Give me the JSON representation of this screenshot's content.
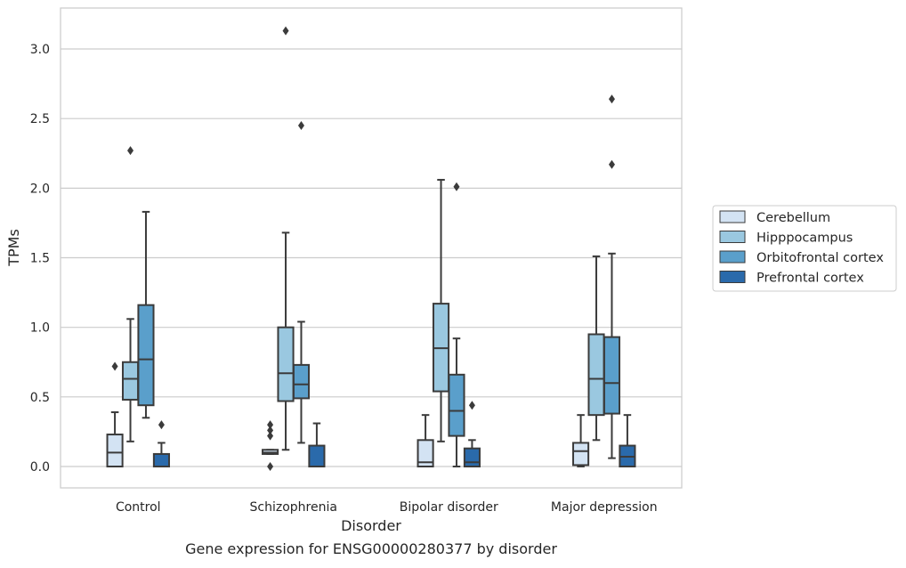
{
  "chart_data": {
    "type": "box",
    "title": "",
    "caption": "Gene expression for ENSG00000280377 by disorder",
    "xlabel": "Disorder",
    "ylabel": "TPMs",
    "ylim": [
      -0.15,
      3.3
    ],
    "yticks": [
      "0.0",
      "0.5",
      "1.0",
      "1.5",
      "2.0",
      "2.5",
      "3.0"
    ],
    "grid": "horizontal",
    "legend_placement": "right",
    "categories": [
      "Control",
      "Schizophrenia",
      "Bipolar disorder",
      "Major depression"
    ],
    "series": [
      {
        "name": "Cerebellum",
        "color": "#d3e3f3",
        "boxes": [
          {
            "whislo": 0.0,
            "q1": 0.0,
            "med": 0.1,
            "q3": 0.23,
            "whishi": 0.39,
            "fliers": [
              0.72
            ]
          },
          {
            "whislo": 0.09,
            "q1": 0.09,
            "med": 0.1,
            "q3": 0.12,
            "whishi": 0.12,
            "fliers": [
              0.3,
              0.26,
              0.22,
              0.0
            ]
          },
          {
            "whislo": 0.0,
            "q1": 0.0,
            "med": 0.03,
            "q3": 0.19,
            "whishi": 0.37,
            "fliers": []
          },
          {
            "whislo": 0.0,
            "q1": 0.01,
            "med": 0.11,
            "q3": 0.17,
            "whishi": 0.37,
            "fliers": []
          }
        ]
      },
      {
        "name": "Hipppocampus",
        "color": "#9ac8e0",
        "boxes": [
          {
            "whislo": 0.18,
            "q1": 0.48,
            "med": 0.63,
            "q3": 0.75,
            "whishi": 1.06,
            "fliers": [
              2.27
            ]
          },
          {
            "whislo": 0.12,
            "q1": 0.47,
            "med": 0.67,
            "q3": 1.0,
            "whishi": 1.68,
            "fliers": [
              3.13
            ]
          },
          {
            "whislo": 0.18,
            "q1": 0.54,
            "med": 0.85,
            "q3": 1.17,
            "whishi": 2.06,
            "fliers": []
          },
          {
            "whislo": 0.19,
            "q1": 0.37,
            "med": 0.63,
            "q3": 0.95,
            "whishi": 1.51,
            "fliers": []
          }
        ]
      },
      {
        "name": "Orbitofrontal cortex",
        "color": "#5a9fcb",
        "boxes": [
          {
            "whislo": 0.35,
            "q1": 0.44,
            "med": 0.77,
            "q3": 1.16,
            "whishi": 1.83,
            "fliers": []
          },
          {
            "whislo": 0.17,
            "q1": 0.49,
            "med": 0.59,
            "q3": 0.73,
            "whishi": 1.04,
            "fliers": [
              2.45
            ]
          },
          {
            "whislo": 0.0,
            "q1": 0.22,
            "med": 0.4,
            "q3": 0.66,
            "whishi": 0.92,
            "fliers": [
              2.01
            ]
          },
          {
            "whislo": 0.06,
            "q1": 0.38,
            "med": 0.6,
            "q3": 0.93,
            "whishi": 1.53,
            "fliers": [
              2.64,
              2.17
            ]
          }
        ]
      },
      {
        "name": "Prefrontal cortex",
        "color": "#2a6aab",
        "boxes": [
          {
            "whislo": 0.0,
            "q1": 0.0,
            "med": 0.0,
            "q3": 0.09,
            "whishi": 0.17,
            "fliers": [
              0.3
            ]
          },
          {
            "whislo": 0.0,
            "q1": 0.0,
            "med": 0.0,
            "q3": 0.15,
            "whishi": 0.31,
            "fliers": []
          },
          {
            "whislo": 0.0,
            "q1": 0.0,
            "med": 0.03,
            "q3": 0.13,
            "whishi": 0.19,
            "fliers": [
              0.44
            ]
          },
          {
            "whislo": 0.0,
            "q1": 0.0,
            "med": 0.07,
            "q3": 0.15,
            "whishi": 0.37,
            "fliers": []
          }
        ]
      }
    ]
  }
}
